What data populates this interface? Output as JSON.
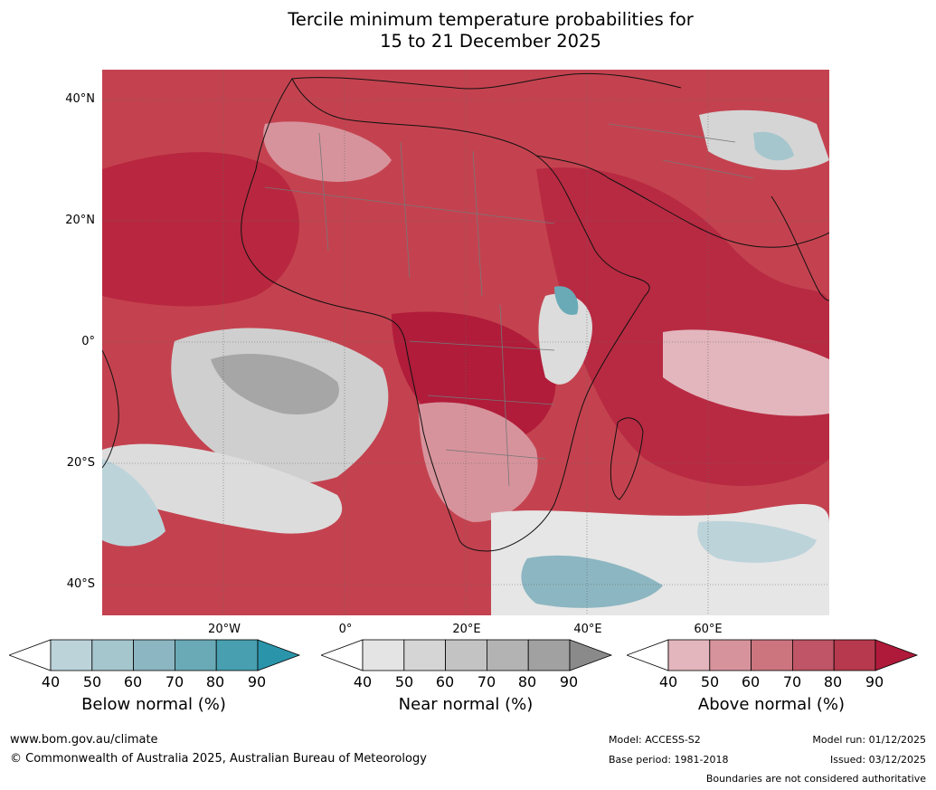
{
  "title": {
    "line1": "Tercile minimum temperature probabilities for",
    "line2": "15 to 21 December 2025"
  },
  "map": {
    "lat_labels": [
      "40°N",
      "20°N",
      "0°",
      "20°S",
      "40°S"
    ],
    "lon_labels": [
      "20°W",
      "0°",
      "20°E",
      "40°E",
      "60°E"
    ]
  },
  "colorbars": [
    {
      "label": "Below normal (%)",
      "ticks": [
        "40",
        "50",
        "60",
        "70",
        "80",
        "90"
      ],
      "colors": [
        "#ffffff",
        "#bcd3da",
        "#a5c6cd",
        "#8cb6c1",
        "#6aaab7",
        "#479fb0",
        "#2a95aa"
      ]
    },
    {
      "label": "Near normal (%)",
      "ticks": [
        "40",
        "50",
        "60",
        "70",
        "80",
        "90"
      ],
      "colors": [
        "#ffffff",
        "#e4e4e4",
        "#d5d5d5",
        "#c3c3c3",
        "#b3b3b3",
        "#a1a1a1",
        "#8a8a8a"
      ]
    },
    {
      "label": "Above normal (%)",
      "ticks": [
        "40",
        "50",
        "60",
        "70",
        "80",
        "90"
      ],
      "colors": [
        "#ffffff",
        "#e2b6bc",
        "#d7939c",
        "#cc757f",
        "#bf5566",
        "#b6394e",
        "#b01a3a"
      ]
    }
  ],
  "footer": {
    "website": "www.bom.gov.au/climate",
    "copyright": "© Commonwealth of Australia 2025, Australian Bureau of Meteorology",
    "model": "Model: ACCESS-S2",
    "base_period": "Base period: 1981-2018",
    "model_run": "Model run: 01/12/2025",
    "issued": "Issued: 03/12/2025",
    "disclaimer": "Boundaries are not considered authoritative"
  }
}
